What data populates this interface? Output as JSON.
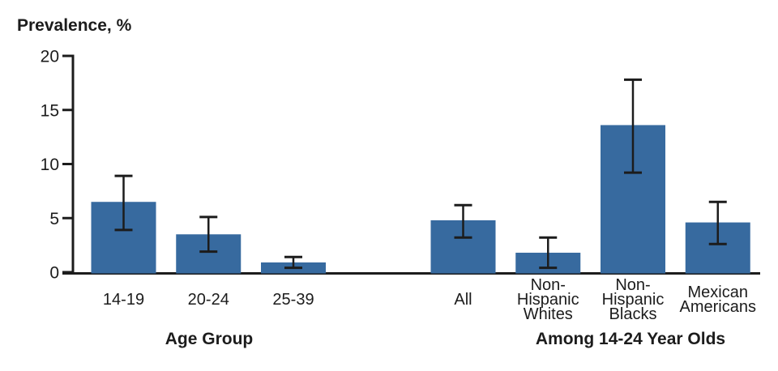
{
  "figure": {
    "background": "#ffffff"
  },
  "chart_data": {
    "type": "bar",
    "title": "Prevalence, %",
    "ylabel": "Prevalence, %",
    "xlabel": "",
    "ylim": [
      0,
      20
    ],
    "yticks": [
      0,
      5,
      10,
      15,
      20
    ],
    "grid": false,
    "legend": false,
    "error_bars": true,
    "bar_color": "#376A9F",
    "axis_color": "#1C1C1C",
    "text_color": "#1C1C1C",
    "error_bar_color": "#1C1C1C",
    "groups": [
      {
        "label": "Age Group",
        "categories": [
          {
            "label": "14-19",
            "lines": [
              "14-19"
            ],
            "value": 6.5,
            "ci_low": 3.9,
            "ci_high": 8.9
          },
          {
            "label": "20-24",
            "lines": [
              "20-24"
            ],
            "value": 3.5,
            "ci_low": 1.9,
            "ci_high": 5.1
          },
          {
            "label": "25-39",
            "lines": [
              "25-39"
            ],
            "value": 0.9,
            "ci_low": 0.4,
            "ci_high": 1.4
          }
        ]
      },
      {
        "label": "Among 14-24 Year Olds",
        "categories": [
          {
            "label": "All",
            "lines": [
              "All"
            ],
            "value": 4.8,
            "ci_low": 3.2,
            "ci_high": 6.2
          },
          {
            "label": "Non-Hispanic Whites",
            "lines": [
              "Non-",
              "Hispanic",
              "Whites"
            ],
            "value": 1.8,
            "ci_low": 0.4,
            "ci_high": 3.2
          },
          {
            "label": "Non-Hispanic Blacks",
            "lines": [
              "Non-",
              "Hispanic",
              "Blacks"
            ],
            "value": 13.6,
            "ci_low": 9.2,
            "ci_high": 17.8
          },
          {
            "label": "Mexican Americans",
            "lines": [
              "Mexican",
              "Americans"
            ],
            "value": 4.6,
            "ci_low": 2.6,
            "ci_high": 6.5
          }
        ]
      }
    ]
  }
}
